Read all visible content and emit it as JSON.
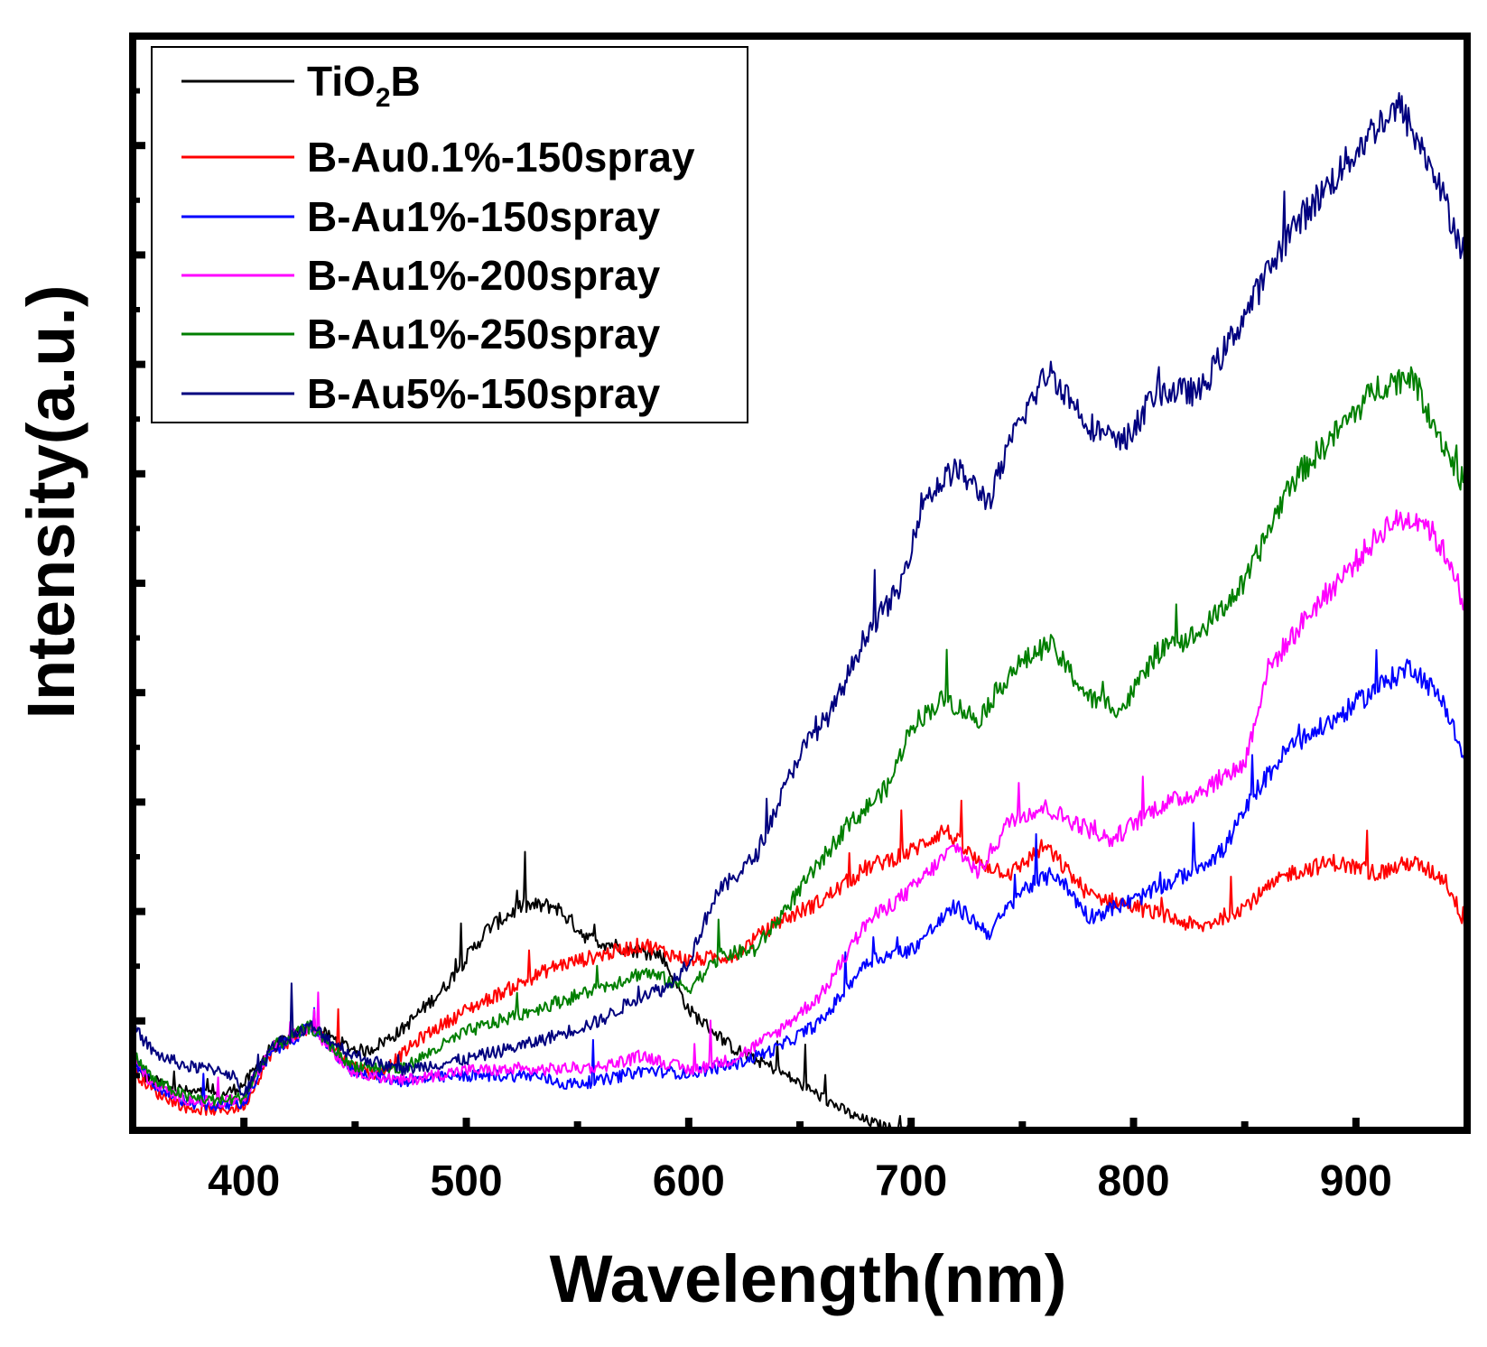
{
  "chart_data": {
    "type": "line",
    "xlabel": "Wavelength(nm)",
    "ylabel": "Intensity(a.u.)",
    "xlim": [
      350,
      950
    ],
    "ylim": [
      0,
      10
    ],
    "x_ticks": [
      400,
      500,
      600,
      700,
      800,
      900
    ],
    "x_tick_labels": [
      "400",
      "500",
      "600",
      "700",
      "800",
      "900"
    ],
    "y_tick_labels_shown": false,
    "grid": false,
    "legend_position": "top-left",
    "legend": {
      "tio2b": {
        "prefix": "TiO",
        "sub": "2",
        "suffix": "B"
      }
    },
    "series": [
      {
        "name": "TiO2B",
        "color": "#000000",
        "x": [
          350,
          360,
          375,
          390,
          400,
          412,
          430,
          448,
          455,
          470,
          490,
          510,
          525,
          540,
          555,
          575,
          588,
          600,
          620,
          640,
          660,
          675,
          690,
          700
        ],
        "y": [
          0.55,
          0.45,
          0.35,
          0.32,
          0.42,
          0.75,
          0.95,
          0.75,
          0.72,
          0.9,
          1.3,
          1.85,
          2.05,
          2.05,
          1.75,
          1.65,
          1.6,
          1.1,
          0.75,
          0.55,
          0.3,
          0.12,
          0.02,
          0.0
        ]
      },
      {
        "name": "B-Au0.1%-150spray",
        "color": "#ff0000",
        "x": [
          350,
          360,
          375,
          390,
          400,
          412,
          430,
          448,
          460,
          480,
          500,
          520,
          540,
          560,
          580,
          600,
          620,
          640,
          660,
          680,
          700,
          715,
          730,
          745,
          760,
          780,
          800,
          815,
          830,
          850,
          870,
          890,
          910,
          925,
          940,
          950
        ],
        "y": [
          0.55,
          0.35,
          0.2,
          0.18,
          0.22,
          0.7,
          0.95,
          0.6,
          0.5,
          0.85,
          1.1,
          1.3,
          1.5,
          1.6,
          1.7,
          1.55,
          1.6,
          1.9,
          2.1,
          2.4,
          2.55,
          2.75,
          2.45,
          2.35,
          2.6,
          2.15,
          2.05,
          1.95,
          1.85,
          2.05,
          2.35,
          2.45,
          2.35,
          2.45,
          2.3,
          1.85
        ]
      },
      {
        "name": "B-Au1%-150spray",
        "color": "#0000ff",
        "x": [
          350,
          360,
          375,
          390,
          400,
          412,
          430,
          448,
          470,
          500,
          530,
          545,
          560,
          580,
          600,
          620,
          640,
          660,
          680,
          700,
          720,
          735,
          750,
          765,
          780,
          800,
          820,
          840,
          855,
          870,
          890,
          910,
          925,
          940,
          950
        ],
        "y": [
          0.65,
          0.4,
          0.25,
          0.22,
          0.25,
          0.7,
          0.95,
          0.55,
          0.45,
          0.5,
          0.5,
          0.42,
          0.45,
          0.55,
          0.52,
          0.6,
          0.75,
          1.0,
          1.55,
          1.65,
          2.05,
          1.8,
          2.2,
          2.35,
          1.95,
          2.1,
          2.3,
          2.55,
          3.1,
          3.5,
          3.75,
          4.05,
          4.25,
          3.9,
          3.3
        ]
      },
      {
        "name": "B-Au1%-200spray",
        "color": "#ff00ff",
        "x": [
          350,
          360,
          375,
          390,
          400,
          412,
          430,
          448,
          470,
          500,
          530,
          560,
          580,
          600,
          620,
          640,
          660,
          680,
          700,
          720,
          730,
          745,
          760,
          775,
          790,
          810,
          830,
          850,
          860,
          880,
          900,
          915,
          930,
          945,
          950
        ],
        "y": [
          0.65,
          0.4,
          0.28,
          0.25,
          0.3,
          0.75,
          0.95,
          0.55,
          0.45,
          0.55,
          0.55,
          0.58,
          0.68,
          0.55,
          0.65,
          0.9,
          1.25,
          1.9,
          2.2,
          2.6,
          2.35,
          2.85,
          2.95,
          2.8,
          2.65,
          2.95,
          3.1,
          3.35,
          4.2,
          4.75,
          5.2,
          5.55,
          5.6,
          5.1,
          4.45
        ]
      },
      {
        "name": "B-Au1%-250spray",
        "color": "#007f00",
        "x": [
          350,
          360,
          375,
          390,
          400,
          412,
          430,
          448,
          470,
          500,
          530,
          560,
          580,
          600,
          615,
          630,
          650,
          670,
          690,
          700,
          715,
          730,
          745,
          762,
          780,
          795,
          810,
          830,
          850,
          870,
          890,
          910,
          925,
          940,
          950
        ],
        "y": [
          0.7,
          0.45,
          0.3,
          0.27,
          0.3,
          0.75,
          0.95,
          0.6,
          0.55,
          0.9,
          1.1,
          1.3,
          1.45,
          1.3,
          1.6,
          1.65,
          2.2,
          2.75,
          3.15,
          3.7,
          3.95,
          3.75,
          4.2,
          4.45,
          3.95,
          3.85,
          4.35,
          4.55,
          5.0,
          5.9,
          6.35,
          6.8,
          6.9,
          6.25,
          5.85
        ]
      },
      {
        "name": "B-Au5%-150spray",
        "color": "#00007f",
        "x": [
          350,
          360,
          375,
          390,
          395,
          400,
          412,
          430,
          448,
          470,
          500,
          530,
          560,
          580,
          590,
          600,
          612,
          630,
          650,
          665,
          680,
          695,
          705,
          720,
          735,
          748,
          762,
          780,
          795,
          810,
          830,
          850,
          870,
          890,
          910,
          920,
          935,
          950
        ],
        "y": [
          0.95,
          0.7,
          0.58,
          0.55,
          0.5,
          0.32,
          0.75,
          0.95,
          0.7,
          0.55,
          0.65,
          0.8,
          1.0,
          1.25,
          1.3,
          1.55,
          2.15,
          2.5,
          3.45,
          3.85,
          4.55,
          4.95,
          5.75,
          6.05,
          5.75,
          6.45,
          6.95,
          6.45,
          6.25,
          6.75,
          6.75,
          7.45,
          8.2,
          8.7,
          9.2,
          9.35,
          8.75,
          7.95
        ]
      }
    ]
  }
}
